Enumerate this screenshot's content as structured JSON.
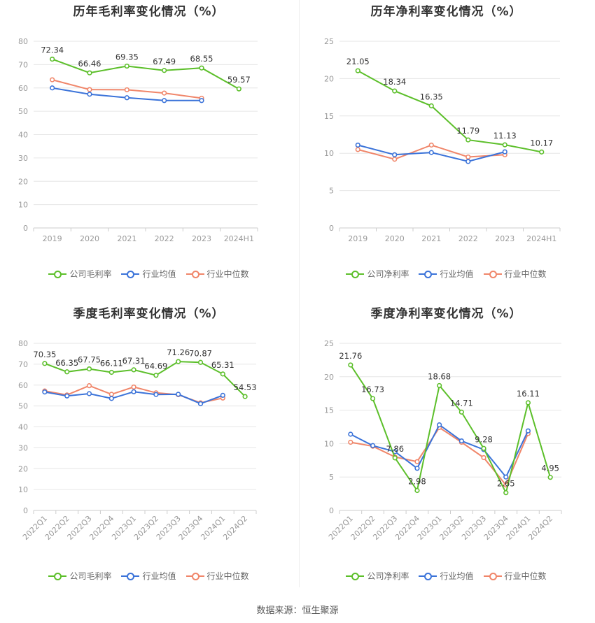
{
  "source_text": "数据来源：恒生聚源",
  "colors": {
    "company": "#5cbf2a",
    "industry_avg": "#3b73d9",
    "industry_median": "#f0866a",
    "grid": "#e6e6e6",
    "axis": "#999999",
    "label": "#333333"
  },
  "legend": {
    "gross": [
      "公司毛利率",
      "行业均值",
      "行业中位数"
    ],
    "net": [
      "公司净利率",
      "行业均值",
      "行业中位数"
    ]
  },
  "chart_data": [
    {
      "id": "annual-gross",
      "type": "line",
      "title": "历年毛利率变化情况（%）",
      "categories": [
        "2019",
        "2020",
        "2021",
        "2022",
        "2023",
        "2024H1"
      ],
      "ylim": [
        0,
        80
      ],
      "yticks": [
        0,
        10,
        20,
        30,
        40,
        50,
        60,
        70,
        80
      ],
      "series": [
        {
          "name": "公司毛利率",
          "values": [
            72.34,
            66.46,
            69.35,
            67.49,
            68.55,
            59.57
          ]
        },
        {
          "name": "行业均值",
          "values": [
            60.0,
            57.3,
            55.8,
            54.6,
            54.6,
            null
          ]
        },
        {
          "name": "行业中位数",
          "values": [
            63.5,
            59.3,
            59.2,
            57.8,
            55.6,
            null
          ]
        }
      ]
    },
    {
      "id": "annual-net",
      "type": "line",
      "title": "历年净利率变化情况（%）",
      "categories": [
        "2019",
        "2020",
        "2021",
        "2022",
        "2023",
        "2024H1"
      ],
      "ylim": [
        0,
        25
      ],
      "yticks": [
        0,
        5,
        10,
        15,
        20,
        25
      ],
      "series": [
        {
          "name": "公司净利率",
          "values": [
            21.05,
            18.34,
            16.35,
            11.79,
            11.13,
            10.17
          ]
        },
        {
          "name": "行业均值",
          "values": [
            11.1,
            9.8,
            10.1,
            8.9,
            10.2,
            null
          ]
        },
        {
          "name": "行业中位数",
          "values": [
            10.5,
            9.2,
            11.1,
            9.5,
            9.8,
            null
          ]
        }
      ]
    },
    {
      "id": "quarterly-gross",
      "type": "line",
      "title": "季度毛利率变化情况（%）",
      "categories": [
        "2022Q1",
        "2022Q2",
        "2022Q3",
        "2022Q4",
        "2023Q1",
        "2023Q2",
        "2023Q3",
        "2023Q4",
        "2024Q1",
        "2024Q2"
      ],
      "ylim": [
        0,
        80
      ],
      "yticks": [
        0,
        10,
        20,
        30,
        40,
        50,
        60,
        70,
        80
      ],
      "series": [
        {
          "name": "公司毛利率",
          "values": [
            70.35,
            66.35,
            67.75,
            66.11,
            67.31,
            64.69,
            71.26,
            70.87,
            65.31,
            54.53
          ]
        },
        {
          "name": "行业均值",
          "values": [
            56.7,
            54.8,
            55.9,
            53.6,
            56.8,
            55.5,
            55.6,
            51.1,
            55.1,
            null
          ]
        },
        {
          "name": "行业中位数",
          "values": [
            57.2,
            55.3,
            59.7,
            55.6,
            59.1,
            56.3,
            55.4,
            51.5,
            53.8,
            null
          ]
        }
      ]
    },
    {
      "id": "quarterly-net",
      "type": "line",
      "title": "季度净利率变化情况（%）",
      "categories": [
        "2022Q1",
        "2022Q2",
        "2022Q3",
        "2022Q4",
        "2023Q1",
        "2023Q2",
        "2023Q3",
        "2023Q4",
        "2024Q1",
        "2024Q2"
      ],
      "ylim": [
        0,
        25
      ],
      "yticks": [
        0,
        5,
        10,
        15,
        20,
        25
      ],
      "series": [
        {
          "name": "公司净利率",
          "values": [
            21.76,
            16.73,
            7.86,
            2.98,
            18.68,
            14.71,
            9.28,
            2.65,
            16.11,
            4.95
          ]
        },
        {
          "name": "行业均值",
          "values": [
            11.4,
            9.7,
            8.8,
            6.3,
            12.8,
            10.4,
            9.1,
            5.0,
            11.9,
            null
          ]
        },
        {
          "name": "行业中位数",
          "values": [
            10.2,
            9.6,
            8.0,
            7.3,
            12.4,
            10.2,
            7.9,
            3.8,
            11.5,
            null
          ]
        }
      ]
    }
  ]
}
